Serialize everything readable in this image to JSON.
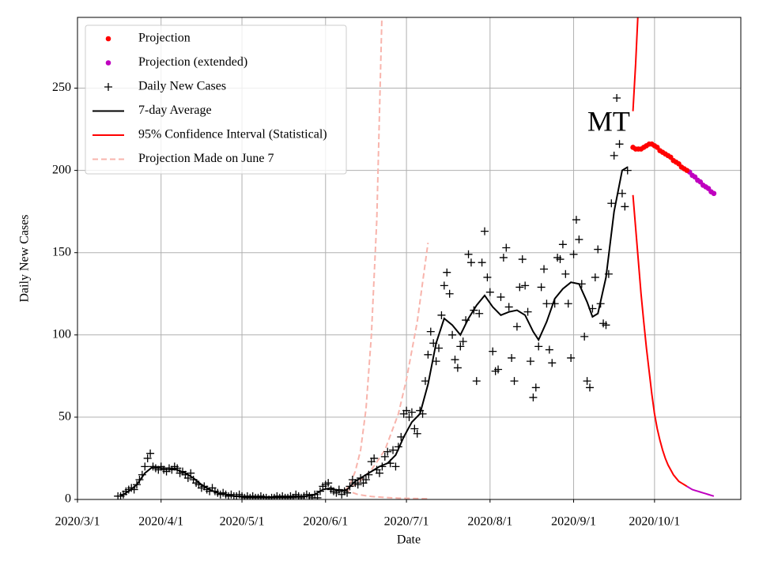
{
  "chart_data": {
    "type": "line",
    "annotation": "MT",
    "annotation_x": "2020/9/14",
    "annotation_y": 228,
    "xlabel": "Date",
    "ylabel": "Daily New Cases",
    "xlim": [
      "2020/3/1",
      "2020/11/2"
    ],
    "ylim": [
      0,
      293
    ],
    "xticks": [
      "2020/3/1",
      "2020/4/1",
      "2020/5/1",
      "2020/6/1",
      "2020/7/1",
      "2020/8/1",
      "2020/9/1",
      "2020/10/1"
    ],
    "yticks": [
      0,
      50,
      100,
      150,
      200,
      250
    ],
    "grid": true,
    "legend": "upper left",
    "series": [
      {
        "name": "Projection",
        "color": "#ff0000",
        "marker": "dot",
        "x": [
          "2020/9/23",
          "2020/9/24",
          "2020/9/25",
          "2020/9/26",
          "2020/9/27",
          "2020/9/28",
          "2020/9/29",
          "2020/9/30",
          "2020/10/1",
          "2020/10/2",
          "2020/10/3",
          "2020/10/4",
          "2020/10/5",
          "2020/10/6",
          "2020/10/7",
          "2020/10/8",
          "2020/10/9",
          "2020/10/10",
          "2020/10/11",
          "2020/10/12",
          "2020/10/13"
        ],
        "values": [
          214,
          213,
          213,
          213,
          214,
          215,
          216,
          216,
          215,
          214,
          212,
          211,
          210,
          209,
          208,
          206,
          205,
          204,
          202,
          201,
          200
        ]
      },
      {
        "name": "Projection (extended)",
        "color": "#bf00bf",
        "marker": "dot",
        "x": [
          "2020/10/14",
          "2020/10/15",
          "2020/10/16",
          "2020/10/17",
          "2020/10/18",
          "2020/10/19",
          "2020/10/20",
          "2020/10/21",
          "2020/10/22",
          "2020/10/23"
        ],
        "values": [
          199,
          197,
          196,
          194,
          193,
          191,
          190,
          189,
          187,
          186
        ],
        "curves": [
          {
            "x": [
              "2020/10/13",
              "2020/10/14",
              "2020/10/15",
              "2020/10/16",
              "2020/10/17",
              "2020/10/18",
              "2020/10/19",
              "2020/10/20",
              "2020/10/21",
              "2020/10/22",
              "2020/10/23"
            ],
            "values": [
              8,
              7,
              6,
              5.5,
              5,
              4.5,
              4,
              3.5,
              3,
              2.5,
              2
            ]
          }
        ]
      },
      {
        "name": "Daily New Cases",
        "color": "#000000",
        "marker": "plus",
        "x": [
          "2020/3/16",
          "2020/3/17",
          "2020/3/18",
          "2020/3/19",
          "2020/3/20",
          "2020/3/21",
          "2020/3/22",
          "2020/3/23",
          "2020/3/24",
          "2020/3/25",
          "2020/3/26",
          "2020/3/27",
          "2020/3/28",
          "2020/3/29",
          "2020/3/30",
          "2020/3/31",
          "2020/4/1",
          "2020/4/2",
          "2020/4/3",
          "2020/4/4",
          "2020/4/5",
          "2020/4/6",
          "2020/4/7",
          "2020/4/8",
          "2020/4/9",
          "2020/4/10",
          "2020/4/11",
          "2020/4/12",
          "2020/4/13",
          "2020/4/14",
          "2020/4/15",
          "2020/4/16",
          "2020/4/17",
          "2020/4/18",
          "2020/4/19",
          "2020/4/20",
          "2020/4/21",
          "2020/4/22",
          "2020/4/23",
          "2020/4/24",
          "2020/4/25",
          "2020/4/26",
          "2020/4/27",
          "2020/4/28",
          "2020/4/29",
          "2020/4/30",
          "2020/5/1",
          "2020/5/2",
          "2020/5/3",
          "2020/5/4",
          "2020/5/5",
          "2020/5/6",
          "2020/5/7",
          "2020/5/8",
          "2020/5/9",
          "2020/5/10",
          "2020/5/11",
          "2020/5/12",
          "2020/5/13",
          "2020/5/14",
          "2020/5/15",
          "2020/5/16",
          "2020/5/17",
          "2020/5/18",
          "2020/5/19",
          "2020/5/20",
          "2020/5/21",
          "2020/5/22",
          "2020/5/23",
          "2020/5/24",
          "2020/5/25",
          "2020/5/26",
          "2020/5/27",
          "2020/5/28",
          "2020/5/29",
          "2020/5/30",
          "2020/5/31",
          "2020/6/1",
          "2020/6/2",
          "2020/6/3",
          "2020/6/4",
          "2020/6/5",
          "2020/6/6",
          "2020/6/7",
          "2020/6/8",
          "2020/6/9",
          "2020/6/10",
          "2020/6/11",
          "2020/6/12",
          "2020/6/13",
          "2020/6/14",
          "2020/6/15",
          "2020/6/16",
          "2020/6/17",
          "2020/6/18",
          "2020/6/19",
          "2020/6/20",
          "2020/6/21",
          "2020/6/22",
          "2020/6/23",
          "2020/6/24",
          "2020/6/25",
          "2020/6/26",
          "2020/6/27",
          "2020/6/28",
          "2020/6/29",
          "2020/6/30",
          "2020/7/1",
          "2020/7/2",
          "2020/7/3",
          "2020/7/4",
          "2020/7/5",
          "2020/7/6",
          "2020/7/7",
          "2020/7/8",
          "2020/7/9",
          "2020/7/10",
          "2020/7/11",
          "2020/7/12",
          "2020/7/13",
          "2020/7/14",
          "2020/7/15",
          "2020/7/16",
          "2020/7/17",
          "2020/7/18",
          "2020/7/19",
          "2020/7/20",
          "2020/7/21",
          "2020/7/22",
          "2020/7/23",
          "2020/7/24",
          "2020/7/25",
          "2020/7/26",
          "2020/7/27",
          "2020/7/28",
          "2020/7/29",
          "2020/7/30",
          "2020/7/31",
          "2020/8/1",
          "2020/8/2",
          "2020/8/3",
          "2020/8/4",
          "2020/8/5",
          "2020/8/6",
          "2020/8/7",
          "2020/8/8",
          "2020/8/9",
          "2020/8/10",
          "2020/8/11",
          "2020/8/12",
          "2020/8/13",
          "2020/8/14",
          "2020/8/15",
          "2020/8/16",
          "2020/8/17",
          "2020/8/18",
          "2020/8/19",
          "2020/8/20",
          "2020/8/21",
          "2020/8/22",
          "2020/8/23",
          "2020/8/24",
          "2020/8/25",
          "2020/8/26",
          "2020/8/27",
          "2020/8/28",
          "2020/8/29",
          "2020/8/30",
          "2020/8/31",
          "2020/9/1",
          "2020/9/2",
          "2020/9/3",
          "2020/9/4",
          "2020/9/5",
          "2020/9/6",
          "2020/9/7",
          "2020/9/8",
          "2020/9/9",
          "2020/9/10",
          "2020/9/11",
          "2020/9/12",
          "2020/9/13",
          "2020/9/14",
          "2020/9/15",
          "2020/9/16",
          "2020/9/17",
          "2020/9/18",
          "2020/9/19",
          "2020/9/20",
          "2020/9/21"
        ],
        "values": [
          2,
          2,
          3,
          5,
          6,
          7,
          6,
          9,
          12,
          15,
          20,
          25,
          28,
          20,
          19,
          18,
          20,
          18,
          17,
          19,
          18,
          20,
          19,
          16,
          17,
          15,
          13,
          16,
          12,
          10,
          9,
          7,
          8,
          6,
          5,
          7,
          5,
          4,
          3,
          4,
          3,
          2,
          3,
          2,
          2,
          3,
          2,
          1,
          2,
          1,
          2,
          1,
          1,
          2,
          1,
          1,
          0,
          1,
          1,
          2,
          1,
          2,
          1,
          1,
          2,
          1,
          3,
          2,
          1,
          2,
          3,
          2,
          1,
          3,
          1,
          5,
          8,
          9,
          10,
          6,
          5,
          4,
          6,
          3,
          5,
          4,
          8,
          12,
          10,
          9,
          13,
          10,
          12,
          15,
          23,
          25,
          18,
          16,
          20,
          26,
          29,
          22,
          30,
          20,
          32,
          38,
          52,
          54,
          50,
          53,
          43,
          40,
          54,
          52,
          72,
          88,
          102,
          95,
          84,
          92,
          112,
          130,
          138,
          125,
          100,
          85,
          80,
          93,
          96,
          109,
          149,
          144,
          115,
          72,
          113,
          144,
          163,
          135,
          126,
          90,
          78,
          79,
          123,
          147,
          153,
          117,
          86,
          72,
          105,
          129,
          146,
          130,
          114,
          84,
          62,
          68,
          93,
          129,
          140,
          119,
          91,
          83,
          119,
          147,
          146,
          155,
          137,
          119,
          86,
          149,
          170,
          158,
          131,
          99,
          72,
          68,
          116,
          135,
          152,
          119,
          107,
          106,
          137,
          180,
          209,
          244,
          216,
          186,
          178,
          200
        ]
      },
      {
        "name": "7-day Average",
        "color": "#000000",
        "line": "solid",
        "x": [
          "2020/3/17",
          "2020/3/20",
          "2020/3/23",
          "2020/3/26",
          "2020/3/29",
          "2020/4/1",
          "2020/4/4",
          "2020/4/7",
          "2020/4/10",
          "2020/4/13",
          "2020/4/16",
          "2020/4/19",
          "2020/4/22",
          "2020/4/25",
          "2020/4/28",
          "2020/5/5",
          "2020/5/15",
          "2020/5/25",
          "2020/5/28",
          "2020/5/31",
          "2020/6/3",
          "2020/6/6",
          "2020/6/9",
          "2020/6/12",
          "2020/6/15",
          "2020/6/18",
          "2020/6/21",
          "2020/6/24",
          "2020/6/27",
          "2020/6/30",
          "2020/7/3",
          "2020/7/6",
          "2020/7/9",
          "2020/7/12",
          "2020/7/15",
          "2020/7/18",
          "2020/7/21",
          "2020/7/24",
          "2020/7/27",
          "2020/7/30",
          "2020/8/2",
          "2020/8/5",
          "2020/8/8",
          "2020/8/11",
          "2020/8/14",
          "2020/8/17",
          "2020/8/19",
          "2020/8/22",
          "2020/8/25",
          "2020/8/28",
          "2020/8/31",
          "2020/9/3",
          "2020/9/6",
          "2020/9/8",
          "2020/9/10",
          "2020/9/13",
          "2020/9/16",
          "2020/9/19",
          "2020/9/21"
        ],
        "values": [
          2,
          5,
          9,
          16,
          20,
          19,
          19,
          18,
          16,
          13,
          9,
          6,
          4,
          3,
          2,
          1.5,
          1.5,
          2,
          3,
          6,
          7,
          5,
          6,
          11,
          14,
          17,
          20,
          22,
          27,
          38,
          47,
          52,
          70,
          95,
          110,
          106,
          100,
          110,
          118,
          124,
          117,
          112,
          114,
          115,
          112,
          102,
          97,
          108,
          122,
          128,
          132,
          131,
          120,
          111,
          113,
          135,
          175,
          200,
          202
        ]
      },
      {
        "name": "95% Confidence Interval (Statistical)",
        "color": "#ff0000",
        "line": "solid",
        "curves": [
          {
            "x": [
              "2020/9/23",
              "2020/9/24",
              "2020/9/25"
            ],
            "values": [
              236,
              265,
              300
            ]
          },
          {
            "x": [
              "2020/9/23",
              "2020/9/24",
              "2020/9/25",
              "2020/9/26",
              "2020/9/27",
              "2020/9/28",
              "2020/9/29",
              "2020/9/30",
              "2020/10/1",
              "2020/10/2",
              "2020/10/3",
              "2020/10/4",
              "2020/10/5",
              "2020/10/6",
              "2020/10/7",
              "2020/10/8",
              "2020/10/9",
              "2020/10/10",
              "2020/10/11",
              "2020/10/12",
              "2020/10/13"
            ],
            "values": [
              185,
              165,
              145,
              125,
              108,
              92,
              78,
              64,
              52,
              43,
              36,
              30,
              25,
              21,
              18,
              15,
              13,
              11,
              10,
              9,
              8
            ]
          }
        ]
      },
      {
        "name": "Projection Made on June 7",
        "color": "#f8b4ac",
        "line": "dashed",
        "curves": [
          {
            "x": [
              "2020/6/8",
              "2020/6/10",
              "2020/6/12",
              "2020/6/14",
              "2020/6/16",
              "2020/6/18",
              "2020/6/20",
              "2020/6/22"
            ],
            "values": [
              5,
              9,
              17,
              30,
              55,
              100,
              170,
              300
            ]
          },
          {
            "x": [
              "2020/6/8",
              "2020/6/13",
              "2020/6/18",
              "2020/6/23",
              "2020/6/28",
              "2020/7/1",
              "2020/7/5",
              "2020/7/9"
            ],
            "values": [
              5,
              10,
              18,
              30,
              52,
              73,
              108,
              156
            ]
          },
          {
            "x": [
              "2020/6/8",
              "2020/6/13",
              "2020/6/18",
              "2020/6/23",
              "2020/6/28",
              "2020/7/9"
            ],
            "values": [
              6,
              3,
              1.8,
              1.2,
              0.8,
              0.4
            ]
          }
        ]
      }
    ]
  }
}
